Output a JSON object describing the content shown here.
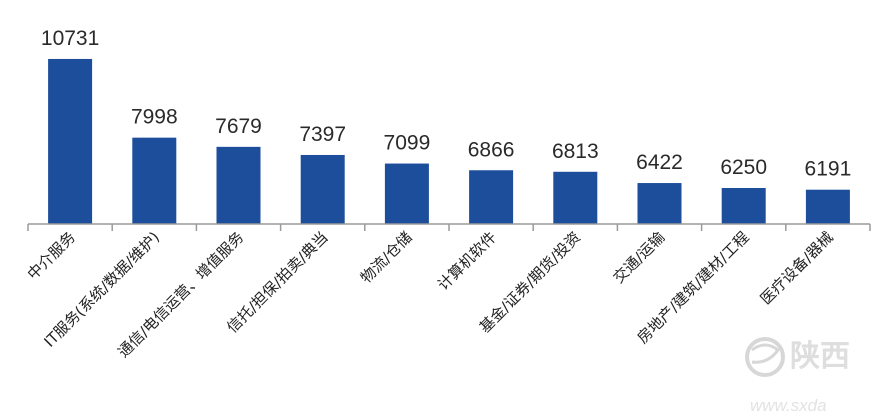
{
  "chart_data": {
    "type": "bar",
    "categories": [
      "中介服务",
      "IT服务(系统/数据/维护)",
      "通信/电信运营、增值服务",
      "信托/担保/拍卖/典当",
      "物流/仓储",
      "计算机软件",
      "基金/证券/期货/投资",
      "交通/运输",
      "房地产/建筑/建材/工程",
      "医疗设备/器械"
    ],
    "values": [
      10731,
      7998,
      7679,
      7397,
      7099,
      6866,
      6813,
      6422,
      6250,
      6191
    ],
    "title": "",
    "xlabel": "",
    "ylabel": "",
    "ylim": [
      5000,
      11000
    ],
    "grid": false,
    "legend": "none",
    "bar_color": "#1c4e9c",
    "axis_color": "#9a9a9a"
  },
  "watermark": {
    "brand": "陕西",
    "url": "www.sxda"
  }
}
